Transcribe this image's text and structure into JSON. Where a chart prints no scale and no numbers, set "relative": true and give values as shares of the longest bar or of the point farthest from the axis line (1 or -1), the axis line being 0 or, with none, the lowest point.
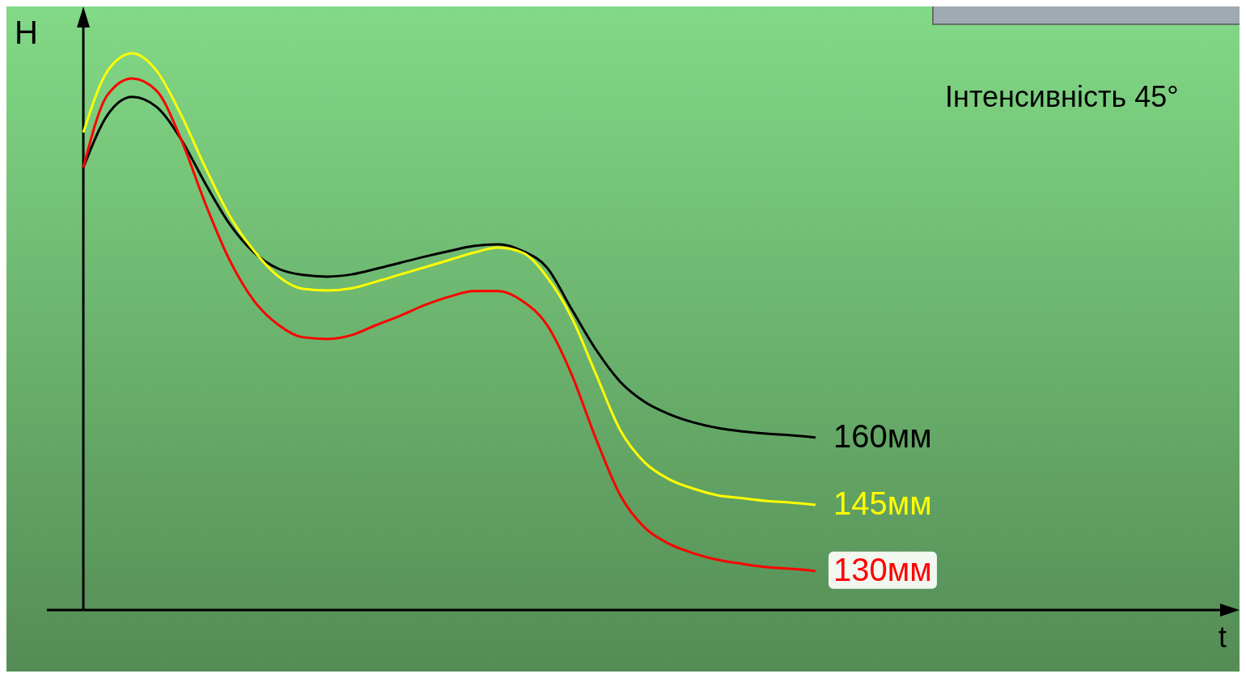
{
  "chart_data": {
    "type": "line",
    "relative": true,
    "ylabel": "H",
    "legend": false,
    "marker": "none",
    "line_style": "solid",
    "annotations": [
      "Інтенсивність 45°",
      "t"
    ],
    "categories": [
      null,
      null,
      null,
      null,
      null,
      null,
      null,
      null,
      null,
      null,
      null,
      null,
      null,
      null,
      null,
      null,
      null,
      null,
      null,
      null,
      null,
      null,
      null,
      null,
      null,
      null,
      null,
      null,
      null,
      null,
      null
    ],
    "series": [
      {
        "name": "160мм",
        "color": "#000000",
        "values": [
          0.795,
          0.89,
          0.922,
          0.904,
          0.846,
          0.766,
          0.693,
          0.642,
          0.613,
          0.602,
          0.599,
          0.603,
          0.613,
          0.624,
          0.635,
          0.645,
          0.654,
          0.657,
          0.645,
          0.615,
          0.541,
          0.468,
          0.41,
          0.374,
          0.352,
          0.337,
          0.327,
          0.321,
          0.317,
          0.314,
          0.31
        ]
      },
      {
        "name": "145мм",
        "color": "#ffff00",
        "values": [
          0.858,
          0.969,
          1,
          0.969,
          0.89,
          0.795,
          0.708,
          0.645,
          0.599,
          0.577,
          0.574,
          0.578,
          0.59,
          0.603,
          0.616,
          0.629,
          0.642,
          0.651,
          0.642,
          0.598,
          0.526,
          0.424,
          0.323,
          0.265,
          0.235,
          0.218,
          0.206,
          0.201,
          0.196,
          0.193,
          0.189
        ]
      },
      {
        "name": "130мм",
        "color": "#ff0000",
        "values": [
          0.795,
          0.926,
          0.955,
          0.933,
          0.846,
          0.73,
          0.628,
          0.555,
          0.512,
          0.49,
          0.487,
          0.494,
          0.512,
          0.529,
          0.548,
          0.563,
          0.573,
          0.573,
          0.555,
          0.512,
          0.424,
          0.308,
          0.206,
          0.148,
          0.119,
          0.102,
          0.09,
          0.083,
          0.077,
          0.074,
          0.07
        ]
      }
    ]
  }
}
